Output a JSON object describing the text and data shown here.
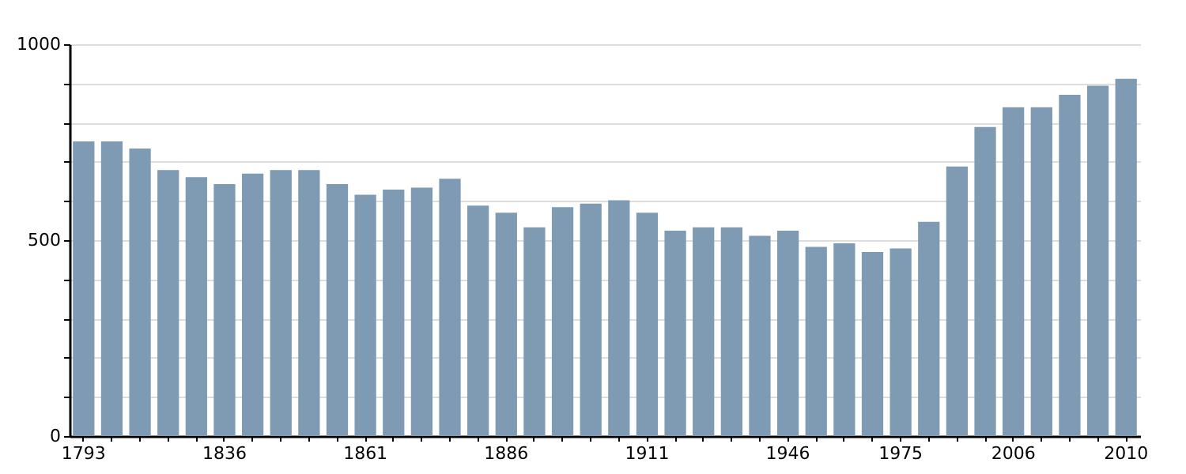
{
  "chart_data": {
    "type": "bar",
    "categories": [
      "1793",
      null,
      null,
      null,
      null,
      "1836",
      null,
      null,
      null,
      null,
      "1861",
      null,
      null,
      null,
      null,
      "1886",
      null,
      null,
      null,
      null,
      "1911",
      null,
      null,
      null,
      null,
      "1946",
      null,
      null,
      null,
      "1975",
      null,
      null,
      null,
      "2006",
      null,
      null,
      null,
      "2010"
    ],
    "values": [
      752,
      752,
      734,
      679,
      661,
      643,
      670,
      679,
      679,
      643,
      616,
      629,
      634,
      657,
      588,
      570,
      533,
      584,
      593,
      602,
      570,
      524,
      533,
      533,
      511,
      524,
      483,
      492,
      470,
      479,
      547,
      688,
      789,
      839,
      839,
      871,
      894,
      912
    ],
    "color": "#7f9ab3",
    "ylim": [
      0,
      1000
    ],
    "yticks": [
      0,
      {
        "value": 100,
        "label": null
      },
      {
        "value": 200,
        "label": null
      },
      {
        "value": 300,
        "label": null
      },
      {
        "value": 400,
        "label": null
      },
      500,
      {
        "value": 600,
        "label": null
      },
      {
        "value": 700,
        "label": null
      },
      {
        "value": 800,
        "label": null
      },
      {
        "value": 900,
        "label": null
      },
      1000
    ],
    "grid": "y"
  }
}
